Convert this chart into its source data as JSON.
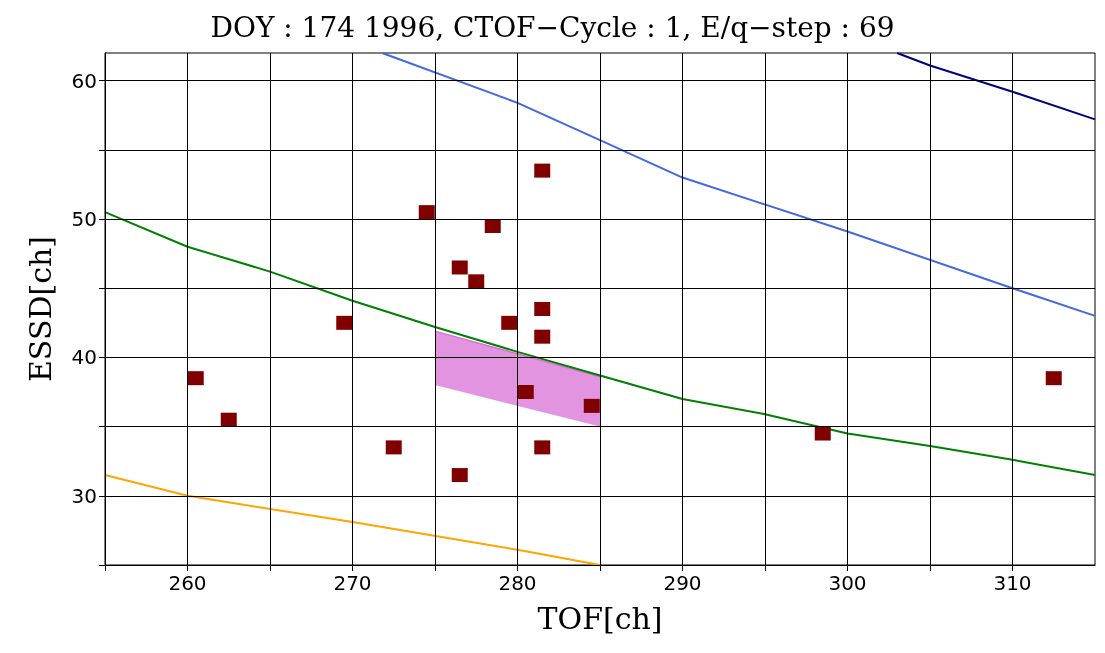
{
  "chart_data": {
    "type": "scatter",
    "title": "DOY : 174 1996, CTOF−Cycle : 1, E/q−step : 69",
    "xlabel": "TOF[ch]",
    "ylabel": "ESSD[ch]",
    "xlim": [
      255,
      315
    ],
    "ylim": [
      25,
      62
    ],
    "xticks": [
      {
        "value": 255,
        "label": null
      },
      260,
      {
        "value": 265,
        "label": null
      },
      270,
      {
        "value": 275,
        "label": null
      },
      280,
      {
        "value": 285,
        "label": null
      },
      290,
      {
        "value": 295,
        "label": null
      },
      300,
      {
        "value": 305,
        "label": null
      },
      310
    ],
    "yticks": [
      {
        "value": 25,
        "label": null
      },
      30,
      {
        "value": 35,
        "label": null
      },
      40,
      {
        "value": 45,
        "label": null
      },
      50,
      {
        "value": 55,
        "label": null
      },
      60
    ],
    "grid": true,
    "series": [
      {
        "type": "line",
        "color": "#da70d6",
        "x": [
          275,
          285
        ],
        "values": [
          41.9,
          38.6
        ],
        "lower": [
          38,
          35
        ],
        "upper": [
          41.9,
          38.6
        ]
      },
      {
        "type": "line",
        "color": "#ffa500",
        "x": [
          255,
          260,
          270,
          280,
          285
        ],
        "values": [
          31.5,
          30,
          28.1,
          26.1,
          25
        ]
      },
      {
        "type": "line",
        "color": "#008000",
        "x": [
          255,
          260,
          265,
          270,
          275,
          280,
          285,
          290,
          295,
          300,
          305,
          310,
          315
        ],
        "values": [
          50.5,
          48,
          46.2,
          44.1,
          42.2,
          40.4,
          38.7,
          37,
          35.9,
          34.5,
          33.6,
          32.6,
          31.5
        ]
      },
      {
        "type": "line",
        "color": "#4169e1",
        "x": [
          271.8,
          280,
          285,
          290,
          300,
          310,
          315
        ],
        "values": [
          62,
          58.4,
          55.7,
          53,
          49.1,
          45,
          43
        ]
      },
      {
        "type": "line",
        "color": "#000080",
        "x": [
          303,
          305,
          310,
          315
        ],
        "values": [
          62,
          61.1,
          59.2,
          57.2
        ]
      },
      {
        "marker": "square",
        "color": "#800000",
        "x": [
          260.5,
          262.5,
          269.5,
          272.5,
          274.5,
          276.5,
          276.5,
          277.5,
          278.5,
          279.5,
          280.5,
          281.5,
          281.5,
          281.5,
          281.5,
          284.5,
          298.5,
          312.5
        ],
        "values": [
          38.5,
          35.5,
          42.5,
          33.5,
          50.5,
          46.5,
          31.5,
          45.5,
          49.5,
          42.5,
          37.5,
          53.5,
          43.5,
          41.5,
          33.5,
          36.5,
          34.5,
          38.5
        ]
      }
    ]
  }
}
